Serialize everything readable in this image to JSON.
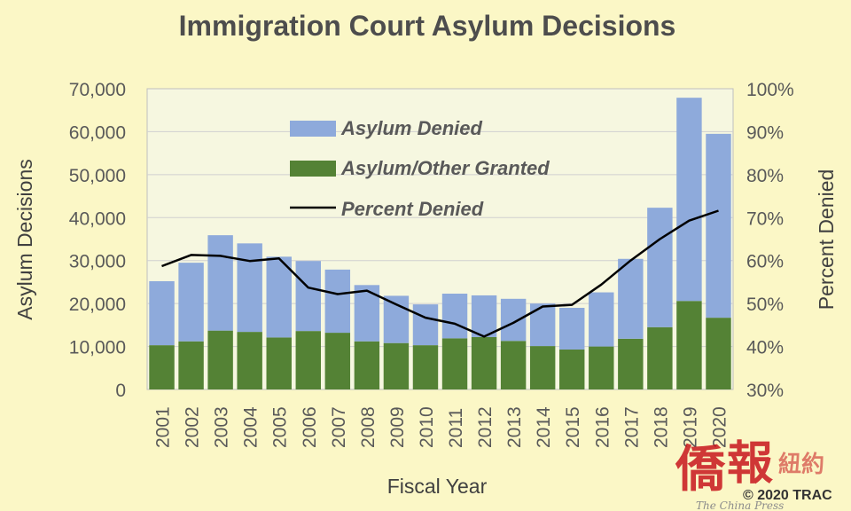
{
  "chart_data": {
    "type": "bar",
    "stacked": true,
    "title": "Immigration Court Asylum Decisions",
    "xlabel": "Fiscal Year",
    "ylabel": "Asylum Decisions",
    "y2label": "Percent Denied",
    "categories": [
      "2001",
      "2002",
      "2003",
      "2004",
      "2005",
      "2006",
      "2007",
      "2008",
      "2009",
      "2010",
      "2011",
      "2012",
      "2013",
      "2014",
      "2015",
      "2016",
      "2017",
      "2018",
      "2019",
      "2020"
    ],
    "ylim": [
      0,
      70000
    ],
    "y_ticks": [
      "0",
      "10,000",
      "20,000",
      "30,000",
      "40,000",
      "50,000",
      "60,000",
      "70,000"
    ],
    "y2lim": [
      30,
      100
    ],
    "y2_ticks": [
      "30%",
      "40%",
      "50%",
      "60%",
      "70%",
      "80%",
      "90%",
      "100%"
    ],
    "grid": true,
    "legend_position": "top-left inside",
    "series": [
      {
        "name": "Asylum/Other Granted",
        "kind": "bar",
        "color": "#548235",
        "values": [
          10300,
          11200,
          13700,
          13400,
          12100,
          13600,
          13200,
          11200,
          10800,
          10300,
          11900,
          12200,
          11300,
          10100,
          9300,
          10000,
          11800,
          14500,
          20600,
          16700
        ]
      },
      {
        "name": "Asylum Denied",
        "kind": "bar",
        "color": "#8eaadb",
        "values": [
          14900,
          18300,
          22200,
          20600,
          18800,
          16300,
          14700,
          13100,
          11000,
          9500,
          10400,
          9700,
          9800,
          9900,
          9700,
          12600,
          18600,
          27800,
          47300,
          42800
        ]
      },
      {
        "name": "Percent Denied",
        "kind": "line",
        "axis": "right",
        "color": "#000000",
        "values": [
          58.7,
          61.3,
          61.1,
          59.9,
          60.5,
          53.7,
          52.2,
          53.0,
          49.8,
          46.7,
          45.3,
          42.3,
          45.5,
          49.3,
          49.7,
          54.4,
          60.0,
          65.0,
          69.3,
          71.6
        ]
      }
    ]
  },
  "watermark": {
    "logo_chars": [
      "僑",
      "報"
    ],
    "logo_suffix": "紐約",
    "copyright": "© 2020 TRAC",
    "tagline": "The China Press"
  }
}
